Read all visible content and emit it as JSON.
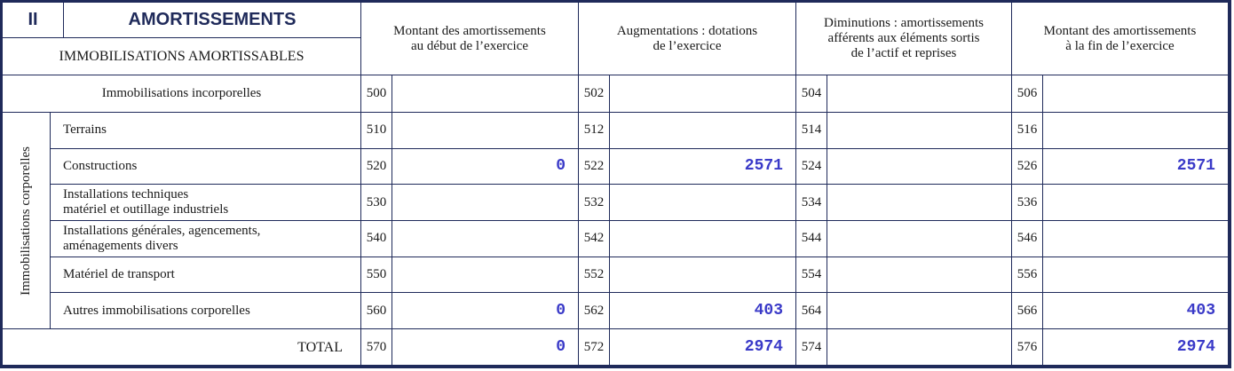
{
  "header": {
    "section": "II",
    "title": "AMORTISSEMENTS",
    "subtitle": "IMMOBILISATIONS AMORTISSABLES",
    "columns": [
      "Montant des amortissements\nau début de l’exercice",
      "Augmentations : dotations\nde l’exercice",
      "Diminutions : amortissements\nafférents aux éléments sortis\nde l’actif et reprises",
      "Montant des amortissements\nà la fin de l’exercice"
    ]
  },
  "incorporelles": {
    "label": "Immobilisations incorporelles",
    "cells": [
      {
        "code": 500
      },
      {
        "code": 502
      },
      {
        "code": 504
      },
      {
        "code": 506
      }
    ]
  },
  "corporelles": {
    "label": "Immobilisations corporelles",
    "rows": [
      {
        "label": "Terrains",
        "cells": [
          {
            "code": 510
          },
          {
            "code": 512
          },
          {
            "code": 514
          },
          {
            "code": 516
          }
        ]
      },
      {
        "label": "Constructions",
        "cells": [
          {
            "code": 520,
            "amount": 0
          },
          {
            "code": 522,
            "amount": 2571
          },
          {
            "code": 524
          },
          {
            "code": 526,
            "amount": 2571
          }
        ]
      },
      {
        "label": "Installations techniques\nmatériel et outillage industriels",
        "cells": [
          {
            "code": 530
          },
          {
            "code": 532
          },
          {
            "code": 534
          },
          {
            "code": 536
          }
        ]
      },
      {
        "label": "Installations générales, agencements,\naménagements divers",
        "cells": [
          {
            "code": 540
          },
          {
            "code": 542
          },
          {
            "code": 544
          },
          {
            "code": 546
          }
        ]
      },
      {
        "label": "Matériel de transport",
        "cells": [
          {
            "code": 550
          },
          {
            "code": 552
          },
          {
            "code": 554
          },
          {
            "code": 556
          }
        ]
      },
      {
        "label": "Autres immobilisations corporelles",
        "cells": [
          {
            "code": 560,
            "amount": 0
          },
          {
            "code": 562,
            "amount": 403
          },
          {
            "code": 564
          },
          {
            "code": 566,
            "amount": 403
          }
        ]
      }
    ]
  },
  "total": {
    "label": "TOTAL",
    "cells": [
      {
        "code": 570,
        "amount": 0
      },
      {
        "code": 572,
        "amount": 2974
      },
      {
        "code": 574
      },
      {
        "code": 576,
        "amount": 2974
      }
    ]
  }
}
